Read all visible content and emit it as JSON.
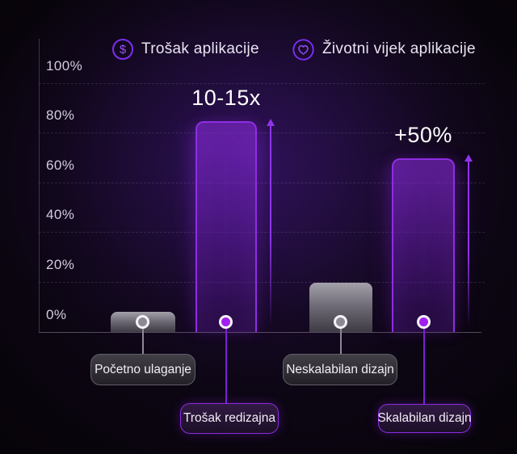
{
  "chart_data": {
    "type": "bar",
    "title": "",
    "legend": [
      {
        "icon": "dollar-circle-icon",
        "icon_glyph": "$",
        "label": "Trošak aplikacije"
      },
      {
        "icon": "heart-circle-icon",
        "icon_glyph": "",
        "label": "Životni vijek aplikacije"
      }
    ],
    "y_axis": {
      "tick_labels": [
        "100%",
        "80%",
        "60%",
        "40%",
        "20%",
        "0%"
      ],
      "ylim": [
        0,
        100
      ],
      "grid": "dashed-horizontal"
    },
    "bars": [
      {
        "label": "Početno ulaganje",
        "value_pct": 8,
        "series": "Trošak aplikacije",
        "style": "gray",
        "annotation": ""
      },
      {
        "label": "Trošak redizajna",
        "value_pct": 85,
        "series": "Trošak aplikacije",
        "style": "purple",
        "annotation": "10-15x"
      },
      {
        "label": "Neskalabilan dizajn",
        "value_pct": 20,
        "series": "Životni vijek aplikacije",
        "style": "gray",
        "annotation": ""
      },
      {
        "label": "Skalabilan dizajn",
        "value_pct": 70,
        "series": "Životni vijek aplikacije",
        "style": "purple",
        "annotation": "+50%"
      }
    ],
    "colors": {
      "accent_purple": "#8e2de2",
      "dot_purple": "#a21ff0",
      "gray_bar": "#a5a1ab",
      "background_glow": "#5b21b6",
      "text_primary": "#ffffff",
      "text_axis": "#d3ccdf"
    }
  }
}
